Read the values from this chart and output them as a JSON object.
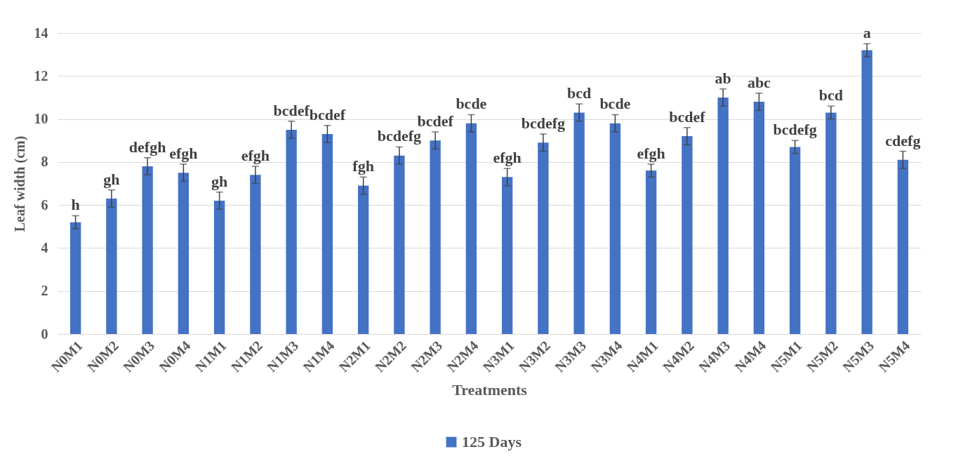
{
  "chart_data": {
    "type": "bar",
    "xlabel": "Treatments",
    "ylabel": "Leaf width (cm)",
    "categories": [
      "N0M1",
      "N0M2",
      "N0M3",
      "N0M4",
      "N1M1",
      "N1M2",
      "N1M3",
      "N1M4",
      "N2M1",
      "N2M2",
      "N2M3",
      "N2M4",
      "N3M1",
      "N3M2",
      "N3M3",
      "N3M4",
      "N4M1",
      "N4M2",
      "N4M3",
      "N4M4",
      "N5M1",
      "N5M2",
      "N5M3",
      "N5M4"
    ],
    "series": [
      {
        "name": "125  Days",
        "color": "#4472c4",
        "values": [
          5.2,
          6.3,
          7.8,
          7.5,
          6.2,
          7.4,
          9.5,
          9.3,
          6.9,
          8.3,
          9.0,
          9.8,
          7.3,
          8.9,
          10.3,
          9.8,
          7.6,
          9.2,
          11.0,
          10.8,
          8.7,
          10.3,
          13.2,
          8.1
        ],
        "errors": [
          0.3,
          0.4,
          0.4,
          0.4,
          0.4,
          0.4,
          0.4,
          0.4,
          0.4,
          0.4,
          0.4,
          0.4,
          0.4,
          0.4,
          0.4,
          0.4,
          0.3,
          0.4,
          0.4,
          0.4,
          0.3,
          0.3,
          0.3,
          0.4
        ]
      }
    ],
    "ylim": [
      0,
      14
    ],
    "yticks": [
      0,
      2,
      4,
      6,
      8,
      10,
      12,
      14
    ],
    "grid": "y",
    "legend": "bottom",
    "annotations": [
      {
        "text": "h",
        "x": "N0M1",
        "y": 5.5
      },
      {
        "text": "gh",
        "x": "N0M2",
        "y": 6.7
      },
      {
        "text": "defgh",
        "x": "N0M3",
        "y": 8.2
      },
      {
        "text": "efgh",
        "x": "N0M4",
        "y": 7.9
      },
      {
        "text": "gh",
        "x": "N1M1",
        "y": 6.6
      },
      {
        "text": "efgh",
        "x": "N1M2",
        "y": 7.8
      },
      {
        "text": "bcdef",
        "x": "N1M3",
        "y": 9.9
      },
      {
        "text": "bcdef",
        "x": "N1M4",
        "y": 9.7
      },
      {
        "text": "fgh",
        "x": "N2M1",
        "y": 7.3
      },
      {
        "text": "bcdefg",
        "x": "N2M2",
        "y": 8.7
      },
      {
        "text": "bcdef",
        "x": "N2M3",
        "y": 9.4
      },
      {
        "text": "bcde",
        "x": "N2M4",
        "y": 10.2
      },
      {
        "text": "efgh",
        "x": "N3M1",
        "y": 7.7
      },
      {
        "text": "bcdefg",
        "x": "N3M2",
        "y": 9.3
      },
      {
        "text": "bcd",
        "x": "N3M3",
        "y": 10.7
      },
      {
        "text": "bcde",
        "x": "N3M4",
        "y": 10.2
      },
      {
        "text": "efgh",
        "x": "N4M1",
        "y": 7.9
      },
      {
        "text": "bcdef",
        "x": "N4M2",
        "y": 9.6
      },
      {
        "text": "ab",
        "x": "N4M3",
        "y": 11.4
      },
      {
        "text": "abc",
        "x": "N4M4",
        "y": 11.2
      },
      {
        "text": "bcdefg",
        "x": "N5M1",
        "y": 9.0
      },
      {
        "text": "bcd",
        "x": "N5M2",
        "y": 10.6
      },
      {
        "text": "a",
        "x": "N5M3",
        "y": 13.5
      },
      {
        "text": "cdefg",
        "x": "N5M4",
        "y": 8.5
      }
    ]
  }
}
